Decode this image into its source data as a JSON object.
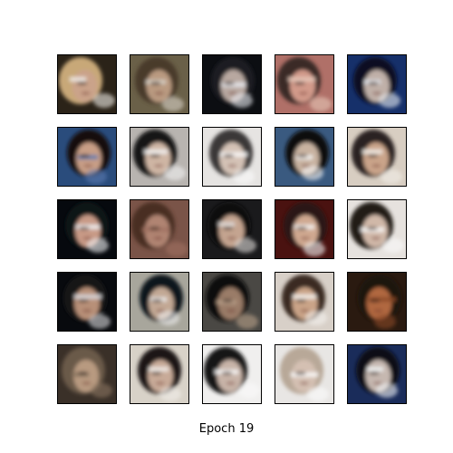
{
  "figure": {
    "caption": "Epoch 19",
    "rows": 5,
    "cols": 5
  },
  "samples": [
    {
      "bg": "#2b2318",
      "hair": "#c8a878",
      "face": "#caa38a",
      "accent": "#f0ece6"
    },
    {
      "bg": "#6a6048",
      "hair": "#4a3a2a",
      "face": "#b99a80",
      "accent": "#d8d2c8"
    },
    {
      "bg": "#0c0e12",
      "hair": "#1a1c22",
      "face": "#b8a8a0",
      "accent": "#e8eaee"
    },
    {
      "bg": "#b07068",
      "hair": "#3a2a28",
      "face": "#d29a8a",
      "accent": "#e8c8b8"
    },
    {
      "bg": "#16306a",
      "hair": "#0a0e20",
      "face": "#c0b0a8",
      "accent": "#e8ecf2"
    },
    {
      "bg": "#2a4c7c",
      "hair": "#140e10",
      "face": "#c89e86",
      "accent": "#5a7ab0"
    },
    {
      "bg": "#b8b4b0",
      "hair": "#181818",
      "face": "#cfb6a4",
      "accent": "#f2f2f2"
    },
    {
      "bg": "#e6e4e2",
      "hair": "#3a3838",
      "face": "#d4c2b6",
      "accent": "#fafafa"
    },
    {
      "bg": "#3a5a80",
      "hair": "#0a0a0e",
      "face": "#c8b2a0",
      "accent": "#f6f6f6"
    },
    {
      "bg": "#d8cec2",
      "hair": "#2a2420",
      "face": "#caa48a",
      "accent": "#f2eee8"
    },
    {
      "bg": "#06090e",
      "hair": "#101418",
      "face": "#c89a86",
      "accent": "#f0f2f4"
    },
    {
      "bg": "#7a5448",
      "hair": "#4a2e24",
      "face": "#b08472",
      "accent": "#a07060"
    },
    {
      "bg": "#1a1a1c",
      "hair": "#0c0c0e",
      "face": "#c4a490",
      "accent": "#e0dcd8"
    },
    {
      "bg": "#4a1210",
      "hair": "#2a1812",
      "face": "#cfa890",
      "accent": "#f4f4f4"
    },
    {
      "bg": "#e6e2de",
      "hair": "#201a18",
      "face": "#d0b8a8",
      "accent": "#fafafa"
    },
    {
      "bg": "#080a0e",
      "hair": "#141418",
      "face": "#b89078",
      "accent": "#d8d8dc"
    },
    {
      "bg": "#a8a69c",
      "hair": "#10141a",
      "face": "#c2a894",
      "accent": "#eeeeee"
    },
    {
      "bg": "#4a4844",
      "hair": "#0e0c0c",
      "face": "#9a7c68",
      "accent": "#b8a088"
    },
    {
      "bg": "#d8d0c8",
      "hair": "#3a2a22",
      "face": "#caa488",
      "accent": "#f4f2ee"
    },
    {
      "bg": "#2a1a10",
      "hair": "#1a120c",
      "face": "#b06840",
      "accent": "#8a4a28"
    },
    {
      "bg": "#3a3028",
      "hair": "#6a5a48",
      "face": "#b89a80",
      "accent": "#8a7460"
    },
    {
      "bg": "#d8d2c8",
      "hair": "#1a1616",
      "face": "#c8aa98",
      "accent": "#f2eeea"
    },
    {
      "bg": "#f0efee",
      "hair": "#181818",
      "face": "#c8b4a8",
      "accent": "#fafafa"
    },
    {
      "bg": "#e8e6e4",
      "hair": "#b8a898",
      "face": "#d4c0b2",
      "accent": "#fbfbfb"
    },
    {
      "bg": "#1a2c5a",
      "hair": "#0a0c14",
      "face": "#c6b8b0",
      "accent": "#f2f4f6"
    }
  ]
}
